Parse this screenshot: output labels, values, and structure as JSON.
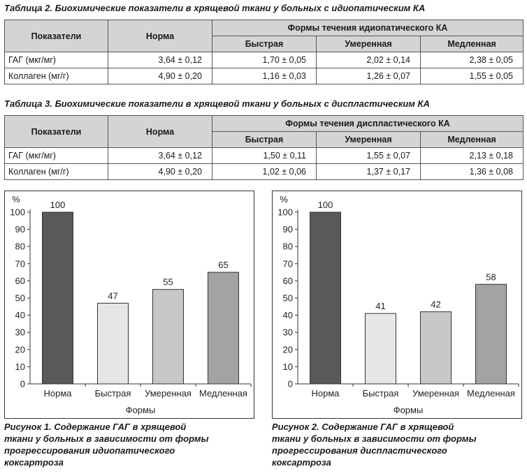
{
  "table2": {
    "caption": "Таблица 2. Биохимические показатели в хрящевой ткани у больных с идиопатическим КА",
    "headers": {
      "indicator": "Показатели",
      "norm": "Норма",
      "group": "Формы течения идиопатического КА",
      "fast": "Быстрая",
      "moderate": "Умеренная",
      "slow": "Медленная"
    },
    "rows": [
      {
        "label": "ГАГ (мкг/мг)",
        "norm": "3,64 ± 0,12",
        "fast": "1,70 ± 0,05",
        "moderate": "2,02 ± 0,14",
        "slow": "2,38 ± 0,05"
      },
      {
        "label": "Коллаген (мг/г)",
        "norm": "4,90 ± 0,20",
        "fast": "1,16 ± 0,03",
        "moderate": "1,26 ± 0,07",
        "slow": "1,55 ± 0,05"
      }
    ]
  },
  "table3": {
    "caption": "Таблица 3. Биохимические показатели в хрящевой ткани у больных с диспластическим КА",
    "headers": {
      "indicator": "Показатели",
      "norm": "Норма",
      "group": "Формы течения диспластического КА",
      "fast": "Быстрая",
      "moderate": "Умеренная",
      "slow": "Медленная"
    },
    "rows": [
      {
        "label": "ГАГ (мкг/мг)",
        "norm": "3,64 ± 0,12",
        "fast": "1,50 ± 0,11",
        "moderate": "1,55 ± 0,07",
        "slow": "2,13 ± 0,18"
      },
      {
        "label": "Коллаген (мг/г)",
        "norm": "4,90 ± 0,20",
        "fast": "1,02 ± 0,06",
        "moderate": "1,37 ± 0,17",
        "slow": "1,36 ± 0,08"
      }
    ]
  },
  "figure1": {
    "caption_lines": [
      "Рисунок 1. Содержание ГАГ в хрящевой",
      "ткани у больных в зависимости от формы",
      "прогрессирования идиопатического",
      "коксартроза"
    ]
  },
  "figure2": {
    "caption_lines": [
      "Рисунок 2. Содержание ГАГ в хрящевой",
      "ткани у больных в зависимости от формы",
      "прогрессирования диспластического",
      "коксартроза"
    ]
  },
  "chart_data": [
    {
      "type": "bar",
      "categories": [
        "Норма",
        "Быстрая",
        "Умеренная",
        "Медленная"
      ],
      "values": [
        100,
        47,
        55,
        65
      ],
      "colors": [
        "#595959",
        "#e6e6e6",
        "#c8c8c8",
        "#a3a3a3"
      ],
      "title": "",
      "xlabel": "Формы",
      "ylabel": "%",
      "ylim": [
        0,
        100
      ],
      "yticks": [
        0,
        10,
        20,
        30,
        40,
        50,
        60,
        70,
        80,
        90,
        100
      ],
      "grid": false,
      "data_labels": true
    },
    {
      "type": "bar",
      "categories": [
        "Норма",
        "Быстрая",
        "Умеренная",
        "Медленная"
      ],
      "values": [
        100,
        41,
        42,
        58
      ],
      "colors": [
        "#595959",
        "#e6e6e6",
        "#c8c8c8",
        "#a3a3a3"
      ],
      "title": "",
      "xlabel": "Формы",
      "ylabel": "%",
      "ylim": [
        0,
        100
      ],
      "yticks": [
        0,
        10,
        20,
        30,
        40,
        50,
        60,
        70,
        80,
        90,
        100
      ],
      "grid": false,
      "data_labels": true
    }
  ]
}
